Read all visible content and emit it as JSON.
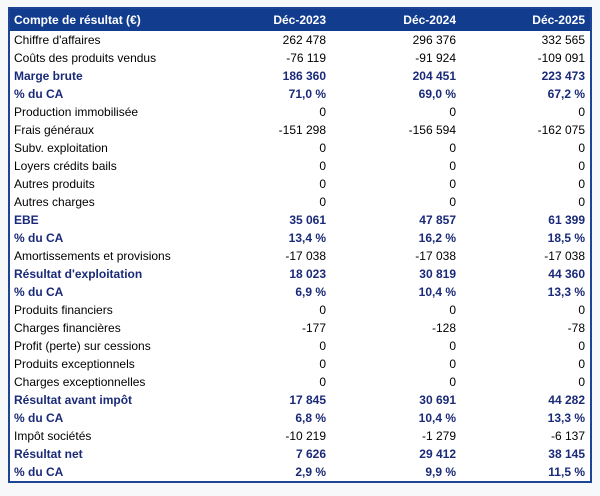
{
  "page": {
    "background": "#f7f8fa"
  },
  "table": {
    "title": "Compte de résultat (€)",
    "columns": [
      "Déc-2023",
      "Déc-2024",
      "Déc-2025"
    ],
    "colors": {
      "header_bg": "#123d8f",
      "header_text": "#ffffff",
      "bold_row_text": "#1a2a78",
      "regular_row_text": "#000000",
      "border": "#1e4496",
      "row_bg": "#ffffff"
    },
    "rows": [
      {
        "label": "Chiffre d'affaires",
        "values": [
          "262 478",
          "296 376",
          "332 565"
        ],
        "bold": false
      },
      {
        "label": "Coûts des produits vendus",
        "values": [
          "-76 119",
          "-91 924",
          "-109 091"
        ],
        "bold": false
      },
      {
        "label": "Marge brute",
        "values": [
          "186 360",
          "204 451",
          "223 473"
        ],
        "bold": true
      },
      {
        "label": "% du CA",
        "values": [
          "71,0 %",
          "69,0 %",
          "67,2 %"
        ],
        "bold": true
      },
      {
        "label": "Production immobilisée",
        "values": [
          "0",
          "0",
          "0"
        ],
        "bold": false
      },
      {
        "label": "Frais généraux",
        "values": [
          "-151 298",
          "-156 594",
          "-162 075"
        ],
        "bold": false
      },
      {
        "label": "Subv. exploitation",
        "values": [
          "0",
          "0",
          "0"
        ],
        "bold": false
      },
      {
        "label": "Loyers crédits bails",
        "values": [
          "0",
          "0",
          "0"
        ],
        "bold": false
      },
      {
        "label": "Autres produits",
        "values": [
          "0",
          "0",
          "0"
        ],
        "bold": false
      },
      {
        "label": "Autres charges",
        "values": [
          "0",
          "0",
          "0"
        ],
        "bold": false
      },
      {
        "label": "EBE",
        "values": [
          "35 061",
          "47 857",
          "61 399"
        ],
        "bold": true
      },
      {
        "label": "% du CA",
        "values": [
          "13,4 %",
          "16,2 %",
          "18,5 %"
        ],
        "bold": true
      },
      {
        "label": "Amortissements et provisions",
        "values": [
          "-17 038",
          "-17 038",
          "-17 038"
        ],
        "bold": false
      },
      {
        "label": "Résultat d'exploitation",
        "values": [
          "18 023",
          "30 819",
          "44 360"
        ],
        "bold": true
      },
      {
        "label": "% du CA",
        "values": [
          "6,9 %",
          "10,4 %",
          "13,3 %"
        ],
        "bold": true
      },
      {
        "label": "Produits financiers",
        "values": [
          "0",
          "0",
          "0"
        ],
        "bold": false
      },
      {
        "label": "Charges financières",
        "values": [
          "-177",
          "-128",
          "-78"
        ],
        "bold": false
      },
      {
        "label": "Profit (perte) sur cessions",
        "values": [
          "0",
          "0",
          "0"
        ],
        "bold": false
      },
      {
        "label": "Produits exceptionnels",
        "values": [
          "0",
          "0",
          "0"
        ],
        "bold": false
      },
      {
        "label": "Charges exceptionnelles",
        "values": [
          "0",
          "0",
          "0"
        ],
        "bold": false
      },
      {
        "label": "Résultat avant impôt",
        "values": [
          "17 845",
          "30 691",
          "44 282"
        ],
        "bold": true
      },
      {
        "label": "% du CA",
        "values": [
          "6,8 %",
          "10,4 %",
          "13,3 %"
        ],
        "bold": true
      },
      {
        "label": "Impôt sociétés",
        "values": [
          "-10 219",
          "-1 279",
          "-6 137"
        ],
        "bold": false
      },
      {
        "label": "Résultat net",
        "values": [
          "7 626",
          "29 412",
          "38 145"
        ],
        "bold": true
      },
      {
        "label": "% du CA",
        "values": [
          "2,9 %",
          "9,9 %",
          "11,5 %"
        ],
        "bold": true
      }
    ]
  }
}
